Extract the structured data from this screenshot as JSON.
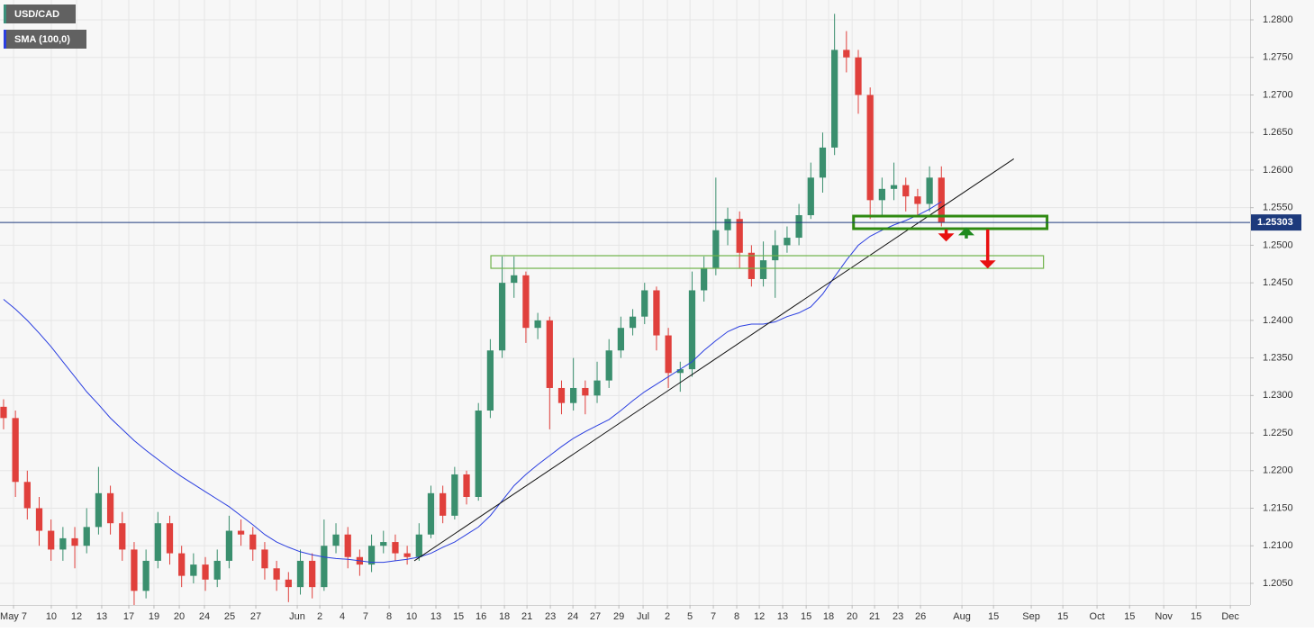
{
  "chart_data": {
    "type": "candlestick",
    "series": [
      {
        "name": "USD/CAD",
        "type": "candlestick",
        "color": "#3a8f7a",
        "color_up": "#3a8f6e",
        "color_down": "#e0403c",
        "x": [
          0,
          1,
          2,
          3,
          4,
          5,
          6,
          7,
          8,
          9,
          10,
          11,
          12,
          13,
          14,
          15,
          16,
          17,
          18,
          19,
          20,
          21,
          22,
          23,
          24,
          25,
          26,
          27,
          28,
          29,
          30,
          31,
          32,
          33,
          34,
          35,
          36,
          37,
          38,
          39,
          40,
          41,
          42,
          43,
          44,
          45,
          46,
          47,
          48,
          49,
          50,
          51,
          52,
          53,
          54,
          55,
          56,
          57,
          58,
          59,
          60,
          61,
          62,
          63,
          64,
          65,
          66,
          67,
          68,
          69,
          70,
          71,
          72,
          73,
          74,
          75,
          76,
          77,
          78,
          79
        ],
        "open": [
          1.2285,
          1.227,
          1.2185,
          1.215,
          1.212,
          1.2095,
          1.211,
          1.21,
          1.2125,
          1.217,
          1.213,
          1.2095,
          1.204,
          1.208,
          1.213,
          1.209,
          1.206,
          1.2075,
          1.2055,
          1.208,
          1.212,
          1.2115,
          1.2095,
          1.207,
          1.2055,
          1.2045,
          1.208,
          1.2045,
          1.21,
          1.2115,
          1.2085,
          1.2075,
          1.21,
          1.2105,
          1.209,
          1.2085,
          1.2115,
          1.217,
          1.214,
          1.2195,
          1.2165,
          1.228,
          1.236,
          1.245,
          1.246,
          1.239,
          1.24,
          1.231,
          1.229,
          1.231,
          1.23,
          1.232,
          1.236,
          1.239,
          1.2405,
          1.244,
          1.238,
          1.233,
          1.2335,
          1.244,
          1.247,
          1.252,
          1.2535,
          1.249,
          1.2455,
          1.248,
          1.25,
          1.251,
          1.254,
          1.259,
          1.263,
          1.276,
          1.275,
          1.27,
          1.256,
          1.2575,
          1.258,
          1.2565,
          1.2555,
          1.259
        ],
        "high": [
          1.2295,
          1.228,
          1.22,
          1.2165,
          1.2135,
          1.2125,
          1.2125,
          1.215,
          1.2205,
          1.218,
          1.2145,
          1.2105,
          1.2095,
          1.2145,
          1.214,
          1.21,
          1.209,
          1.2085,
          1.2095,
          1.214,
          1.2135,
          1.2125,
          1.2105,
          1.208,
          1.2065,
          1.2095,
          1.209,
          1.2135,
          1.213,
          1.2125,
          1.2095,
          1.2115,
          1.212,
          1.2115,
          1.21,
          1.213,
          1.218,
          1.218,
          1.2205,
          1.22,
          1.229,
          1.2375,
          1.2485,
          1.2485,
          1.2465,
          1.241,
          1.2405,
          1.232,
          1.235,
          1.232,
          1.2345,
          1.2375,
          1.2405,
          1.2415,
          1.245,
          1.2445,
          1.239,
          1.2345,
          1.2465,
          1.2485,
          1.259,
          1.255,
          1.2545,
          1.25,
          1.2505,
          1.252,
          1.2525,
          1.2555,
          1.261,
          1.265,
          1.2808,
          1.2785,
          1.276,
          1.271,
          1.259,
          1.261,
          1.259,
          1.2575,
          1.2605,
          1.2605
        ],
        "low": [
          1.2255,
          1.2165,
          1.2135,
          1.21,
          1.208,
          1.208,
          1.207,
          1.209,
          1.2115,
          1.2115,
          1.208,
          1.202,
          1.203,
          1.207,
          1.2075,
          1.2045,
          1.205,
          1.204,
          1.2045,
          1.207,
          1.21,
          1.208,
          1.2055,
          1.204,
          1.2025,
          1.2035,
          1.203,
          1.204,
          1.209,
          1.207,
          1.206,
          1.2065,
          1.209,
          1.208,
          1.2075,
          1.208,
          1.211,
          1.213,
          1.2135,
          1.2155,
          1.216,
          1.227,
          1.235,
          1.243,
          1.237,
          1.2375,
          1.2255,
          1.2275,
          1.228,
          1.2275,
          1.229,
          1.231,
          1.235,
          1.238,
          1.2395,
          1.236,
          1.231,
          1.2305,
          1.2325,
          1.2425,
          1.246,
          1.25,
          1.247,
          1.2445,
          1.2445,
          1.243,
          1.249,
          1.25,
          1.2535,
          1.257,
          1.262,
          1.273,
          1.2675,
          1.2535,
          1.254,
          1.256,
          1.2545,
          1.254,
          1.2545,
          1.2525
        ],
        "close": [
          1.227,
          1.2185,
          1.215,
          1.212,
          1.2095,
          1.211,
          1.21,
          1.2125,
          1.217,
          1.213,
          1.2095,
          1.204,
          1.208,
          1.213,
          1.209,
          1.206,
          1.2075,
          1.2055,
          1.208,
          1.212,
          1.2115,
          1.2095,
          1.207,
          1.2055,
          1.2045,
          1.208,
          1.2045,
          1.21,
          1.2115,
          1.2085,
          1.2075,
          1.21,
          1.2105,
          1.209,
          1.2085,
          1.2115,
          1.217,
          1.214,
          1.2195,
          1.2165,
          1.228,
          1.236,
          1.245,
          1.246,
          1.239,
          1.24,
          1.231,
          1.229,
          1.231,
          1.23,
          1.232,
          1.236,
          1.239,
          1.2405,
          1.244,
          1.238,
          1.233,
          1.2335,
          1.244,
          1.247,
          1.252,
          1.2535,
          1.249,
          1.2455,
          1.248,
          1.25,
          1.251,
          1.254,
          1.259,
          1.263,
          1.276,
          1.275,
          1.27,
          1.256,
          1.2575,
          1.258,
          1.2565,
          1.2555,
          1.259,
          1.253
        ]
      },
      {
        "name": "SMA (100,0)",
        "type": "line",
        "color": "#2b3fe0",
        "x": [
          0,
          1,
          2,
          3,
          4,
          5,
          6,
          7,
          8,
          9,
          10,
          11,
          12,
          13,
          14,
          15,
          16,
          17,
          18,
          19,
          20,
          21,
          22,
          23,
          24,
          25,
          26,
          27,
          28,
          29,
          30,
          31,
          32,
          33,
          34,
          35,
          36,
          37,
          38,
          39,
          40,
          41,
          42,
          43,
          44,
          45,
          46,
          47,
          48,
          49,
          50,
          51,
          52,
          53,
          54,
          55,
          56,
          57,
          58,
          59,
          60,
          61,
          62,
          63,
          64,
          65,
          66,
          67,
          68,
          69,
          70,
          71,
          72,
          73,
          74,
          75,
          76,
          77,
          78,
          79
        ],
        "values": [
          1.2428,
          1.2415,
          1.24,
          1.2383,
          1.2365,
          1.2345,
          1.2325,
          1.2305,
          1.2288,
          1.227,
          1.2255,
          1.224,
          1.2227,
          1.2215,
          1.2203,
          1.2192,
          1.2182,
          1.2172,
          1.2162,
          1.2152,
          1.214,
          1.2128,
          1.2115,
          1.2105,
          1.2098,
          1.2092,
          1.2088,
          1.2085,
          1.2083,
          1.2082,
          1.208,
          1.2078,
          1.2078,
          1.208,
          1.2082,
          1.2085,
          1.209,
          1.2098,
          1.2105,
          1.2115,
          1.2125,
          1.214,
          1.216,
          1.218,
          1.2195,
          1.2208,
          1.222,
          1.2232,
          1.2243,
          1.2252,
          1.226,
          1.2268,
          1.228,
          1.2293,
          1.2305,
          1.2315,
          1.2325,
          1.2335,
          1.2345,
          1.236,
          1.2373,
          1.2385,
          1.2392,
          1.2395,
          1.2395,
          1.2398,
          1.2405,
          1.241,
          1.2418,
          1.2435,
          1.2458,
          1.248,
          1.25,
          1.2512,
          1.252,
          1.2527,
          1.2533,
          1.254,
          1.2548,
          1.2558
        ]
      }
    ],
    "last_price": 1.25303,
    "last_price_color": "#1d3a7c",
    "xlim": [
      -0.3,
      105
    ],
    "ylim": [
      1.20212,
      1.28264
    ],
    "grid": true,
    "yticks": [
      {
        "value": 1.205,
        "label": "1.2050"
      },
      {
        "value": 1.21,
        "label": "1.2100"
      },
      {
        "value": 1.215,
        "label": "1.2150"
      },
      {
        "value": 1.22,
        "label": "1.2200"
      },
      {
        "value": 1.225,
        "label": "1.2250"
      },
      {
        "value": 1.23,
        "label": "1.2300"
      },
      {
        "value": 1.235,
        "label": "1.2350"
      },
      {
        "value": 1.24,
        "label": "1.2400"
      },
      {
        "value": 1.245,
        "label": "1.2450"
      },
      {
        "value": 1.25,
        "label": "1.2500"
      },
      {
        "value": 1.255,
        "label": "1.2550"
      },
      {
        "value": 1.26,
        "label": "1.2600"
      },
      {
        "value": 1.265,
        "label": "1.2650"
      },
      {
        "value": 1.27,
        "label": "1.2700"
      },
      {
        "value": 1.275,
        "label": "1.2750"
      },
      {
        "value": 1.28,
        "label": "1.2800"
      }
    ],
    "xticks": [
      {
        "value": 0.84,
        "label": "May 7"
      },
      {
        "value": 4.02,
        "label": "10"
      },
      {
        "value": 6.15,
        "label": "12"
      },
      {
        "value": 8.27,
        "label": "13"
      },
      {
        "value": 10.55,
        "label": "17"
      },
      {
        "value": 12.67,
        "label": "19"
      },
      {
        "value": 14.8,
        "label": "20"
      },
      {
        "value": 16.92,
        "label": "24"
      },
      {
        "value": 19.05,
        "label": "25"
      },
      {
        "value": 21.25,
        "label": "27"
      },
      {
        "value": 24.74,
        "label": "Jun"
      },
      {
        "value": 26.64,
        "label": "2"
      },
      {
        "value": 28.53,
        "label": "4"
      },
      {
        "value": 30.5,
        "label": "7"
      },
      {
        "value": 32.48,
        "label": "8"
      },
      {
        "value": 34.37,
        "label": "10"
      },
      {
        "value": 36.42,
        "label": "13"
      },
      {
        "value": 38.32,
        "label": "15"
      },
      {
        "value": 40.22,
        "label": "16"
      },
      {
        "value": 42.19,
        "label": "18"
      },
      {
        "value": 44.09,
        "label": "21"
      },
      {
        "value": 46.06,
        "label": "23"
      },
      {
        "value": 47.96,
        "label": "24"
      },
      {
        "value": 49.85,
        "label": "27"
      },
      {
        "value": 51.83,
        "label": "29"
      },
      {
        "value": 53.87,
        "label": "Jul"
      },
      {
        "value": 55.92,
        "label": "2"
      },
      {
        "value": 57.82,
        "label": "5"
      },
      {
        "value": 59.79,
        "label": "7"
      },
      {
        "value": 61.76,
        "label": "8"
      },
      {
        "value": 63.66,
        "label": "12"
      },
      {
        "value": 65.63,
        "label": "13"
      },
      {
        "value": 67.61,
        "label": "15"
      },
      {
        "value": 69.5,
        "label": "18"
      },
      {
        "value": 71.48,
        "label": "20"
      },
      {
        "value": 73.37,
        "label": "21"
      },
      {
        "value": 75.35,
        "label": "23"
      },
      {
        "value": 77.24,
        "label": "26"
      },
      {
        "value": 80.73,
        "label": "Aug"
      },
      {
        "value": 83.39,
        "label": "15"
      },
      {
        "value": 86.57,
        "label": "Sep"
      },
      {
        "value": 89.23,
        "label": "15"
      },
      {
        "value": 92.11,
        "label": "Oct"
      },
      {
        "value": 94.85,
        "label": "15"
      },
      {
        "value": 97.73,
        "label": "Nov"
      },
      {
        "value": 100.46,
        "label": "15"
      },
      {
        "value": 103.34,
        "label": "Dec"
      }
    ],
    "trendline": {
      "x": [
        34.6,
        85.1
      ],
      "y": [
        1.208,
        1.2615
      ],
      "color": "#111111"
    },
    "zones": [
      {
        "x": [
          71.6,
          87.9
        ],
        "y": [
          1.25388,
          1.2522
        ],
        "color": "#2f8a12"
      },
      {
        "x": [
          41.05,
          87.6
        ],
        "y": [
          1.24861,
          1.24693
        ],
        "color": "#6fb34a"
      }
    ],
    "arrows": [
      {
        "x": 79.4,
        "y": [
          1.2521,
          1.2505
        ],
        "color": "#e81010"
      },
      {
        "x": 81.1,
        "y": [
          1.2509,
          1.2524
        ],
        "color": "#1f8a1f"
      },
      {
        "x": 82.9,
        "y": [
          1.2521,
          1.2469
        ],
        "color": "#e81010"
      }
    ]
  }
}
